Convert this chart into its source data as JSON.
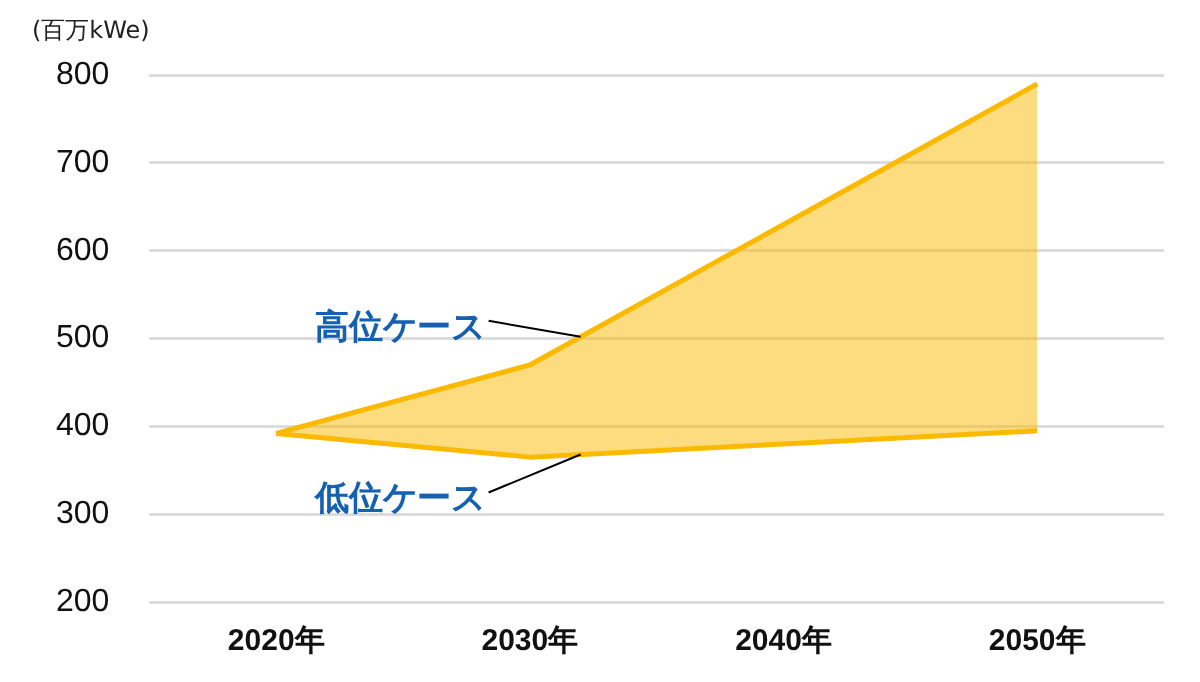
{
  "chart_data": {
    "type": "line",
    "ylabel": "(百万kWe)",
    "categories": [
      "2020年",
      "2030年",
      "2040年",
      "2050年"
    ],
    "series": [
      {
        "name": "高位ケース",
        "type": "area",
        "color": "#fbb900",
        "values": [
          392,
          470,
          630,
          790
        ]
      },
      {
        "name": "低位ケース",
        "type": "line",
        "color": "#fbb900",
        "values": [
          392,
          365,
          380,
          395
        ]
      }
    ],
    "ylim": [
      200,
      800
    ],
    "yticks": [
      200,
      300,
      400,
      500,
      600,
      700,
      800
    ],
    "grid": "y",
    "legend": false
  }
}
